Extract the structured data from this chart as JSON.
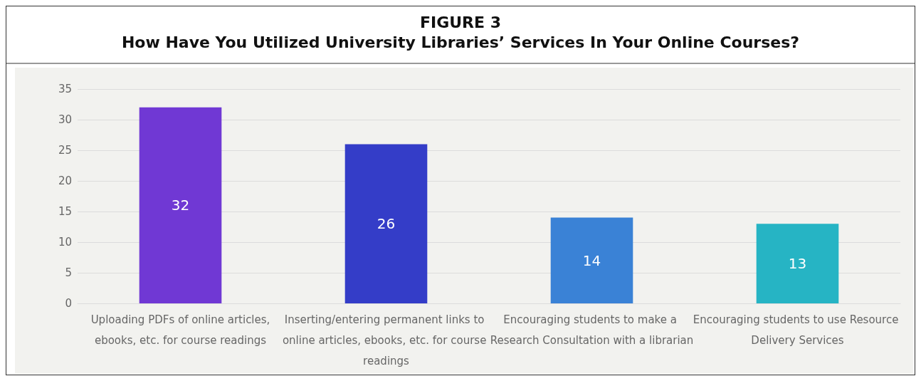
{
  "chart_data": {
    "type": "bar",
    "title": "FIGURE 3",
    "subtitle": "How Have You Utilized University Libraries’ Services In Your Online Courses?",
    "categories": [
      "Uploading PDFs of online articles,ebooks, etc. for course readings",
      "Inserting/entering permanent links to online articles, ebooks, etc. for course readings",
      "Encouraging students to make a Research Consultation with a librarian",
      "Encouraging students to use Resource Delivery Services"
    ],
    "values": [
      32,
      26,
      14,
      13
    ],
    "colors": [
      "#7038d4",
      "#343dc8",
      "#3a82d6",
      "#26b4c4"
    ],
    "ylim": [
      0,
      35
    ],
    "yticks": [
      0,
      5,
      10,
      15,
      20,
      25,
      30,
      35
    ],
    "grid": "y",
    "data_labels": true
  }
}
